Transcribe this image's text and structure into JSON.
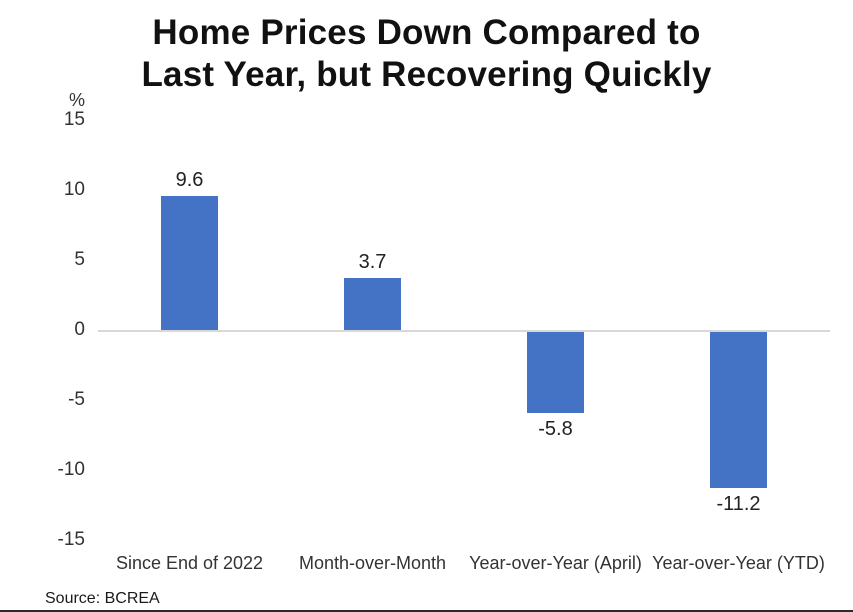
{
  "title": {
    "lines": [
      "Home Prices Down Compared to",
      "Last Year, but Recovering Quickly"
    ]
  },
  "source": "Source: BCREA",
  "colors": {
    "bar": "#4472C4",
    "title_text": "#111111",
    "axis_text": "#333333",
    "zero_line": "#d8d8d8",
    "bottom_rule": "#2b2b2b"
  },
  "chart_data": {
    "type": "bar",
    "title": "Home Prices Down Compared to Last Year, but Recovering Quickly",
    "categories": [
      "Since End of 2022",
      "Month-over-Month",
      "Year-over-Year (April)",
      "Year-over-Year (YTD)"
    ],
    "values": [
      9.6,
      3.7,
      -5.8,
      -11.2
    ],
    "value_labels": [
      "9.6",
      "3.7",
      "-5.8",
      "-11.2"
    ],
    "xlabel": "",
    "ylabel": "%",
    "ylim": [
      -15,
      15
    ],
    "yticks": [
      15,
      10,
      5,
      0,
      -5,
      -10,
      -15
    ],
    "grid": "zero-line-only",
    "legend": "none",
    "source_note": "Source: BCREA"
  }
}
